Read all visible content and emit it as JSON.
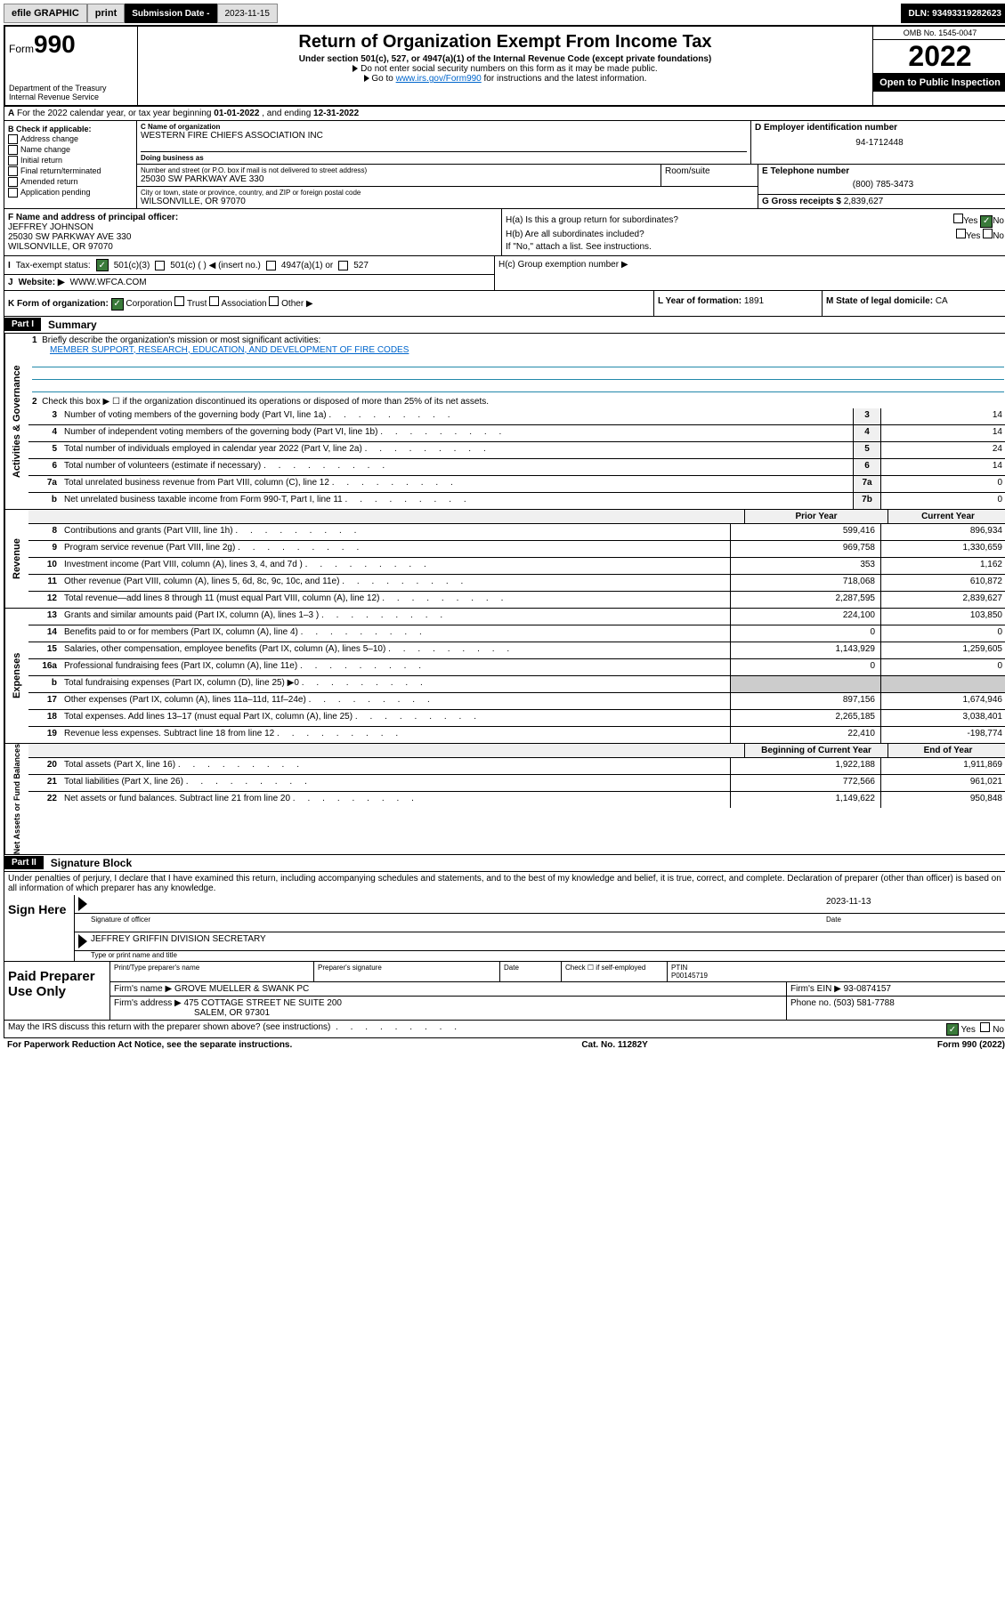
{
  "topbar": {
    "efile": "efile GRAPHIC",
    "print": "print",
    "sub_label": "Submission Date - ",
    "sub_date": "2023-11-15",
    "dln": "DLN: 93493319282623"
  },
  "header": {
    "form_prefix": "Form",
    "form_num": "990",
    "dept": "Department of the Treasury",
    "irs": "Internal Revenue Service",
    "title": "Return of Organization Exempt From Income Tax",
    "sub": "Under section 501(c), 527, or 4947(a)(1) of the Internal Revenue Code (except private foundations)",
    "note1": "Do not enter social security numbers on this form as it may be made public.",
    "note2_a": "Go to ",
    "note2_link": "www.irs.gov/Form990",
    "note2_b": " for instructions and the latest information.",
    "omb": "OMB No. 1545-0047",
    "year": "2022",
    "open": "Open to Public Inspection"
  },
  "row_a": {
    "prefix": "A",
    "text": " For the 2022 calendar year, or tax year beginning ",
    "begin": "01-01-2022",
    "mid": " , and ending ",
    "end": "12-31-2022"
  },
  "section_b": {
    "label": "B Check if applicable:",
    "items": [
      "Address change",
      "Name change",
      "Initial return",
      "Final return/terminated",
      "Amended return",
      "Application pending"
    ]
  },
  "section_c": {
    "label": "C Name of organization",
    "name": "WESTERN FIRE CHIEFS ASSOCIATION INC",
    "dba_label": "Doing business as",
    "addr_label": "Number and street (or P.O. box if mail is not delivered to street address)",
    "suite_label": "Room/suite",
    "addr": "25030 SW PARKWAY AVE 330",
    "city_label": "City or town, state or province, country, and ZIP or foreign postal code",
    "city": "WILSONVILLE, OR  97070"
  },
  "section_d": {
    "label": "D Employer identification number",
    "val": "94-1712448"
  },
  "section_e": {
    "label": "E Telephone number",
    "val": "(800) 785-3473"
  },
  "section_g": {
    "label": "G Gross receipts $ ",
    "val": "2,839,627"
  },
  "section_f": {
    "label": "F Name and address of principal officer:",
    "name": "JEFFREY JOHNSON",
    "addr1": "25030 SW PARKWAY AVE 330",
    "addr2": "WILSONVILLE, OR  97070"
  },
  "section_h": {
    "ha": "H(a)  Is this a group return for subordinates?",
    "hb": "H(b)  Are all subordinates included?",
    "hb_note": "If \"No,\" attach a list. See instructions.",
    "hc": "H(c)  Group exemption number ▶",
    "yes": "Yes",
    "no": "No"
  },
  "row_i": {
    "label": "Tax-exempt status:",
    "opt1": "501(c)(3)",
    "opt2": "501(c) (  ) ◀ (insert no.)",
    "opt3": "4947(a)(1) or",
    "opt4": "527"
  },
  "row_j": {
    "label": "Website: ▶",
    "val": "WWW.WFCA.COM"
  },
  "row_k": {
    "label": "K Form of organization:",
    "opts": [
      "Corporation",
      "Trust",
      "Association",
      "Other ▶"
    ]
  },
  "row_l": {
    "label": "L Year of formation: ",
    "val": "1891"
  },
  "row_m": {
    "label": "M State of legal domicile: ",
    "val": "CA"
  },
  "part1": {
    "hdr": "Part I",
    "title": "Summary"
  },
  "summary": {
    "tabs": [
      "Activities & Governance",
      "Revenue",
      "Expenses",
      "Net Assets or Fund Balances"
    ],
    "line1_label": "Briefly describe the organization's mission or most significant activities:",
    "mission": "MEMBER SUPPORT, RESEARCH, EDUCATION, AND DEVELOPMENT OF FIRE CODES",
    "line2": "Check this box ▶ ☐  if the organization discontinued its operations or disposed of more than 25% of its net assets.",
    "prior_hdr": "Prior Year",
    "curr_hdr": "Current Year",
    "beg_hdr": "Beginning of Current Year",
    "end_hdr": "End of Year",
    "rows_gov": [
      {
        "n": "3",
        "t": "Number of voting members of the governing body (Part VI, line 1a)",
        "box": "3",
        "v": "14"
      },
      {
        "n": "4",
        "t": "Number of independent voting members of the governing body (Part VI, line 1b)",
        "box": "4",
        "v": "14"
      },
      {
        "n": "5",
        "t": "Total number of individuals employed in calendar year 2022 (Part V, line 2a)",
        "box": "5",
        "v": "24"
      },
      {
        "n": "6",
        "t": "Total number of volunteers (estimate if necessary)",
        "box": "6",
        "v": "14"
      },
      {
        "n": "7a",
        "t": "Total unrelated business revenue from Part VIII, column (C), line 12",
        "box": "7a",
        "v": "0"
      },
      {
        "n": "b",
        "t": "Net unrelated business taxable income from Form 990-T, Part I, line 11",
        "box": "7b",
        "v": "0"
      }
    ],
    "rows_rev": [
      {
        "n": "8",
        "t": "Contributions and grants (Part VIII, line 1h)",
        "p": "599,416",
        "c": "896,934"
      },
      {
        "n": "9",
        "t": "Program service revenue (Part VIII, line 2g)",
        "p": "969,758",
        "c": "1,330,659"
      },
      {
        "n": "10",
        "t": "Investment income (Part VIII, column (A), lines 3, 4, and 7d )",
        "p": "353",
        "c": "1,162"
      },
      {
        "n": "11",
        "t": "Other revenue (Part VIII, column (A), lines 5, 6d, 8c, 9c, 10c, and 11e)",
        "p": "718,068",
        "c": "610,872"
      },
      {
        "n": "12",
        "t": "Total revenue—add lines 8 through 11 (must equal Part VIII, column (A), line 12)",
        "p": "2,287,595",
        "c": "2,839,627"
      }
    ],
    "rows_exp": [
      {
        "n": "13",
        "t": "Grants and similar amounts paid (Part IX, column (A), lines 1–3 )",
        "p": "224,100",
        "c": "103,850"
      },
      {
        "n": "14",
        "t": "Benefits paid to or for members (Part IX, column (A), line 4)",
        "p": "0",
        "c": "0"
      },
      {
        "n": "15",
        "t": "Salaries, other compensation, employee benefits (Part IX, column (A), lines 5–10)",
        "p": "1,143,929",
        "c": "1,259,605"
      },
      {
        "n": "16a",
        "t": "Professional fundraising fees (Part IX, column (A), line 11e)",
        "p": "0",
        "c": "0"
      },
      {
        "n": "b",
        "t": "Total fundraising expenses (Part IX, column (D), line 25) ▶0",
        "p": "",
        "c": ""
      },
      {
        "n": "17",
        "t": "Other expenses (Part IX, column (A), lines 11a–11d, 11f–24e)",
        "p": "897,156",
        "c": "1,674,946"
      },
      {
        "n": "18",
        "t": "Total expenses. Add lines 13–17 (must equal Part IX, column (A), line 25)",
        "p": "2,265,185",
        "c": "3,038,401"
      },
      {
        "n": "19",
        "t": "Revenue less expenses. Subtract line 18 from line 12",
        "p": "22,410",
        "c": "-198,774"
      }
    ],
    "rows_net": [
      {
        "n": "20",
        "t": "Total assets (Part X, line 16)",
        "p": "1,922,188",
        "c": "1,911,869"
      },
      {
        "n": "21",
        "t": "Total liabilities (Part X, line 26)",
        "p": "772,566",
        "c": "961,021"
      },
      {
        "n": "22",
        "t": "Net assets or fund balances. Subtract line 21 from line 20",
        "p": "1,149,622",
        "c": "950,848"
      }
    ]
  },
  "part2": {
    "hdr": "Part II",
    "title": "Signature Block"
  },
  "sig": {
    "decl": "Under penalties of perjury, I declare that I have examined this return, including accompanying schedules and statements, and to the best of my knowledge and belief, it is true, correct, and complete. Declaration of preparer (other than officer) is based on all information of which preparer has any knowledge.",
    "sign_here": "Sign Here",
    "sig_officer": "Signature of officer",
    "date_label": "Date",
    "date": "2023-11-13",
    "name": "JEFFREY GRIFFIN DIVISION SECRETARY",
    "name_label": "Type or print name and title"
  },
  "prep": {
    "title": "Paid Preparer Use Only",
    "r1": {
      "c1": "Print/Type preparer's name",
      "c2": "Preparer's signature",
      "c3": "Date",
      "c4": "Check ☐ if self-employed",
      "c5l": "PTIN",
      "c5v": "P00145719"
    },
    "r2": {
      "l": "Firm's name    ▶ ",
      "v": "GROVE MUELLER & SWANK PC",
      "rl": "Firm's EIN ▶ ",
      "rv": "93-0874157"
    },
    "r3": {
      "l": "Firm's address ▶ ",
      "v1": "475 COTTAGE STREET NE SUITE 200",
      "v2": "SALEM, OR  97301",
      "rl": "Phone no. ",
      "rv": "(503) 581-7788"
    }
  },
  "foot": {
    "q": "May the IRS discuss this return with the preparer shown above? (see instructions)",
    "yes": "Yes",
    "no": "No",
    "pra": "For Paperwork Reduction Act Notice, see the separate instructions.",
    "cat": "Cat. No. 11282Y",
    "form": "Form 990 (2022)"
  }
}
